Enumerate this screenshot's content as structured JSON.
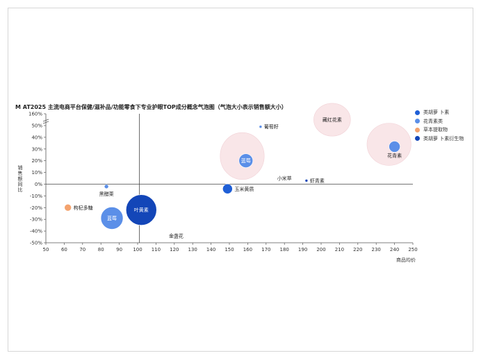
{
  "chart_data": {
    "type": "scatter",
    "title": "M AT2025 主流电商平台保健/滋补品/功能零食下专业护眼TOP成分概念气泡图（气泡大小表示销售额大小）",
    "xlabel": "商品均价",
    "ylabel": "销售额同比",
    "xlim": [
      50,
      250
    ],
    "ylim": [
      -50,
      60
    ],
    "x_ticks": [
      "50",
      "60",
      "70",
      "80",
      "90",
      "100",
      "110",
      "120",
      "130",
      "140",
      "150",
      "160",
      "170",
      "180",
      "190",
      "200",
      "210",
      "220",
      "230",
      "240",
      "250"
    ],
    "y_ticks": [
      "-50%",
      "-40%",
      "-30%",
      "-20%",
      "-10%",
      "0%",
      "10%",
      "20%",
      "30%",
      "40%",
      "50%",
      "160%"
    ],
    "y_top_label": "160%",
    "y_break": true,
    "grid": false,
    "legend_position": "right",
    "series": [
      {
        "name": "类胡萝 卜素",
        "color": "#1f5fd6",
        "points": [
          {
            "label": "玉米黄质",
            "x": 149,
            "y": -4,
            "size": 7
          }
        ]
      },
      {
        "name": "花青素类",
        "color": "#5b8fe8",
        "points": [
          {
            "label": "花青素",
            "x": 240,
            "y": 32,
            "size": 8
          },
          {
            "label": "蓝莓",
            "x": 159,
            "y": 20,
            "size": 10
          },
          {
            "label": "黑醋栗",
            "x": 83,
            "y": -2,
            "size": 3
          },
          {
            "label": "蓝莓",
            "x": 86,
            "y": -29,
            "size": 16
          },
          {
            "label": "葡萄籽",
            "x": 167,
            "y": 49,
            "size": 2
          }
        ]
      },
      {
        "name": "草本提取物",
        "color": "#f4a36e",
        "points": [
          {
            "label": "枸杞多糖",
            "x": 62,
            "y": -20,
            "size": 5
          }
        ]
      },
      {
        "name": "类胡萝 卜素衍生物",
        "color": "#1346b8",
        "points": [
          {
            "label": "叶黄素",
            "x": 102,
            "y": -22,
            "size": 22
          },
          {
            "label": "虾青素",
            "x": 192,
            "y": 3,
            "size": 2
          }
        ]
      }
    ],
    "annotations": [
      {
        "label": "藏红花素",
        "x": 206,
        "y": 55
      },
      {
        "label": "小米草",
        "x": 180,
        "y": 5
      },
      {
        "label": "金盏花",
        "x": 121,
        "y": -44
      }
    ],
    "highlight_ellipses": [
      {
        "x": 157,
        "y": 24,
        "rx_units": 12,
        "ry_units": 20
      },
      {
        "x": 206,
        "y": 55,
        "rx_units": 10,
        "ry_units": 14
      },
      {
        "x": 237,
        "y": 34,
        "rx_units": 12,
        "ry_units": 18
      }
    ],
    "crosshair": {
      "x": 101,
      "y": 0
    }
  }
}
